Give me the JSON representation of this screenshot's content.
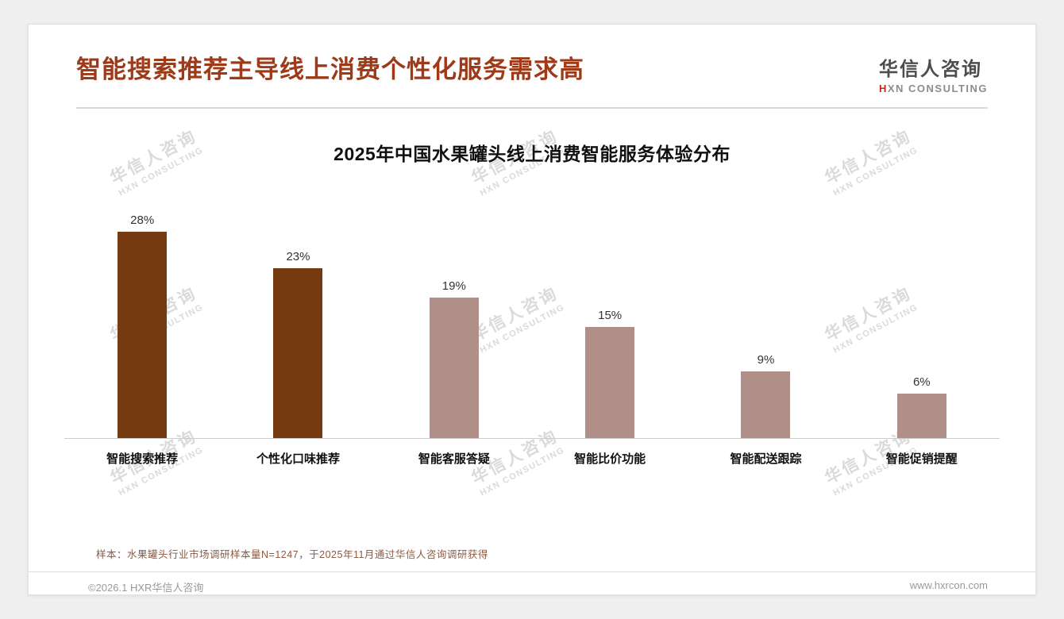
{
  "page": {
    "title": "智能搜索推荐主导线上消费个性化服务需求高",
    "logo": {
      "cn": "华信人咨询",
      "en_prefix": "H",
      "en_rest": "XN CONSULTING"
    },
    "watermark": {
      "line1": "华信人咨询",
      "line2": "HXN CONSULTING"
    },
    "note": "样本：水果罐头行业市场调研样本量N=1247，于2025年11月通过华信人咨询调研获得",
    "footer": {
      "copyright": "©2026.1 HXR华信人咨询",
      "website": "www.hxrcon.com"
    }
  },
  "chart_data": {
    "type": "bar",
    "title": "2025年中国水果罐头线上消费智能服务体验分布",
    "categories": [
      "智能搜索推荐",
      "个性化口味推荐",
      "智能客服答疑",
      "智能比价功能",
      "智能配送跟踪",
      "智能促销提醒"
    ],
    "values": [
      28,
      23,
      19,
      15,
      9,
      6
    ],
    "value_labels": [
      "28%",
      "23%",
      "19%",
      "15%",
      "9%",
      "6%"
    ],
    "highlight_count": 2,
    "colors": {
      "highlight": "#753a10",
      "normal": "#b18f89"
    },
    "xlabel": "",
    "ylabel": "",
    "ylim": [
      0,
      30
    ],
    "grid": false,
    "legend": false
  }
}
